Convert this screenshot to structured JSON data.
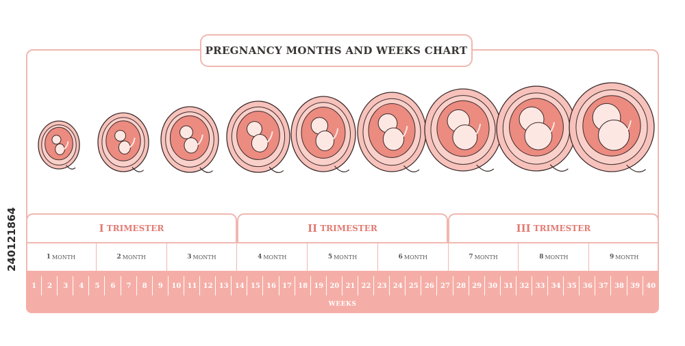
{
  "title": "PREGNANCY MONTHS AND WEEKS CHART",
  "side_id": "240121864",
  "trimesters": [
    {
      "numeral": "I",
      "label": "TRIMESTER"
    },
    {
      "numeral": "II",
      "label": "TRIMESTER"
    },
    {
      "numeral": "III",
      "label": "TRIMESTER"
    }
  ],
  "months": [
    {
      "num": "1",
      "label": "MONTH"
    },
    {
      "num": "2",
      "label": "MONTH"
    },
    {
      "num": "3",
      "label": "MONTH"
    },
    {
      "num": "4",
      "label": "MONTH"
    },
    {
      "num": "5",
      "label": "MONTH"
    },
    {
      "num": "6",
      "label": "MONTH"
    },
    {
      "num": "7",
      "label": "MONTH"
    },
    {
      "num": "8",
      "label": "MONTH"
    },
    {
      "num": "9",
      "label": "MONTH"
    }
  ],
  "weeks": [
    "1",
    "2",
    "3",
    "4",
    "5",
    "6",
    "7",
    "8",
    "9",
    "10",
    "11",
    "12",
    "13",
    "14",
    "15",
    "16",
    "17",
    "18",
    "19",
    "20",
    "21",
    "22",
    "23",
    "24",
    "25",
    "26",
    "27",
    "28",
    "29",
    "30",
    "31",
    "32",
    "33",
    "34",
    "35",
    "36",
    "37",
    "38",
    "39",
    "40"
  ],
  "weeks_label": "WEEKS",
  "colors": {
    "accent": "#e07b73",
    "light": "#f5aea7",
    "border": "#f0b7b0",
    "womb": "#f7c2bb",
    "inner": "#ec8b80"
  },
  "embryo_icons": [
    "month-1-embryo-icon",
    "month-2-embryo-icon",
    "month-3-embryo-icon",
    "month-4-fetus-icon",
    "month-5-fetus-icon",
    "month-6-fetus-icon",
    "month-7-fetus-icon",
    "month-8-fetus-icon",
    "month-9-fetus-icon"
  ]
}
